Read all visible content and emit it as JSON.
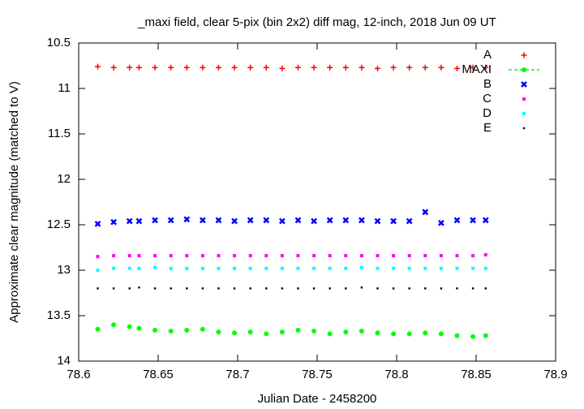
{
  "chart_data": {
    "type": "scatter",
    "title": "_maxi field, clear 5-pix (bin 2x2) diff mag, 12-inch, 2018 Jun 09 UT",
    "x_label": "Julian Date - 2458200",
    "y_label": "Approximate clear magnitude (matched to V)",
    "x": [
      78.612,
      78.622,
      78.632,
      78.638,
      78.648,
      78.658,
      78.668,
      78.678,
      78.688,
      78.698,
      78.708,
      78.718,
      78.728,
      78.738,
      78.748,
      78.758,
      78.768,
      78.778,
      78.788,
      78.798,
      78.808,
      78.818,
      78.828,
      78.838,
      78.848,
      78.856
    ],
    "xlim": [
      78.6,
      78.9
    ],
    "xticks": [
      78.6,
      78.65,
      78.7,
      78.75,
      78.8,
      78.85,
      78.9
    ],
    "ylim": [
      14,
      10.5
    ],
    "yticks": [
      10.5,
      11,
      11.5,
      12,
      12.5,
      13,
      13.5,
      14
    ],
    "y_reversed": true,
    "legend": "top right",
    "series": [
      {
        "name": "A",
        "color": "#ff0000",
        "marker": "plus",
        "values": [
          10.76,
          10.77,
          10.77,
          10.77,
          10.77,
          10.77,
          10.77,
          10.77,
          10.77,
          10.77,
          10.77,
          10.77,
          10.78,
          10.77,
          10.77,
          10.77,
          10.77,
          10.77,
          10.78,
          10.77,
          10.77,
          10.77,
          10.77,
          10.78,
          10.77,
          10.77
        ]
      },
      {
        "name": "MAXI",
        "color": "#00ff00",
        "marker": "circle",
        "values": [
          13.65,
          13.6,
          13.62,
          13.64,
          13.66,
          13.67,
          13.66,
          13.65,
          13.68,
          13.69,
          13.68,
          13.7,
          13.68,
          13.66,
          13.67,
          13.7,
          13.68,
          13.67,
          13.69,
          13.7,
          13.7,
          13.69,
          13.7,
          13.72,
          13.73,
          13.72
        ]
      },
      {
        "name": "B",
        "color": "#0000ff",
        "marker": "cross",
        "values": [
          12.49,
          12.47,
          12.46,
          12.46,
          12.45,
          12.45,
          12.44,
          12.45,
          12.45,
          12.46,
          12.45,
          12.45,
          12.46,
          12.45,
          12.46,
          12.45,
          12.45,
          12.45,
          12.46,
          12.46,
          12.46,
          12.36,
          12.48,
          12.45,
          12.45,
          12.45
        ]
      },
      {
        "name": "C",
        "color": "#ff00ff",
        "marker": "square",
        "values": [
          12.85,
          12.84,
          12.84,
          12.84,
          12.84,
          12.84,
          12.84,
          12.84,
          12.84,
          12.84,
          12.84,
          12.84,
          12.84,
          12.84,
          12.84,
          12.84,
          12.84,
          12.84,
          12.84,
          12.84,
          12.84,
          12.84,
          12.84,
          12.84,
          12.84,
          12.83
        ]
      },
      {
        "name": "D",
        "color": "#00ffff",
        "marker": "square",
        "values": [
          13.0,
          12.98,
          12.98,
          12.98,
          12.97,
          12.98,
          12.98,
          12.98,
          12.98,
          12.98,
          12.98,
          12.98,
          12.98,
          12.98,
          12.98,
          12.98,
          12.98,
          12.97,
          12.98,
          12.98,
          12.98,
          12.98,
          12.98,
          12.98,
          12.98,
          12.98
        ]
      },
      {
        "name": "E",
        "color": "#000000",
        "marker": "dot",
        "values": [
          13.2,
          13.2,
          13.2,
          13.19,
          13.2,
          13.2,
          13.2,
          13.2,
          13.2,
          13.2,
          13.2,
          13.2,
          13.2,
          13.2,
          13.2,
          13.2,
          13.2,
          13.19,
          13.2,
          13.2,
          13.2,
          13.2,
          13.2,
          13.2,
          13.2,
          13.2
        ]
      }
    ]
  }
}
